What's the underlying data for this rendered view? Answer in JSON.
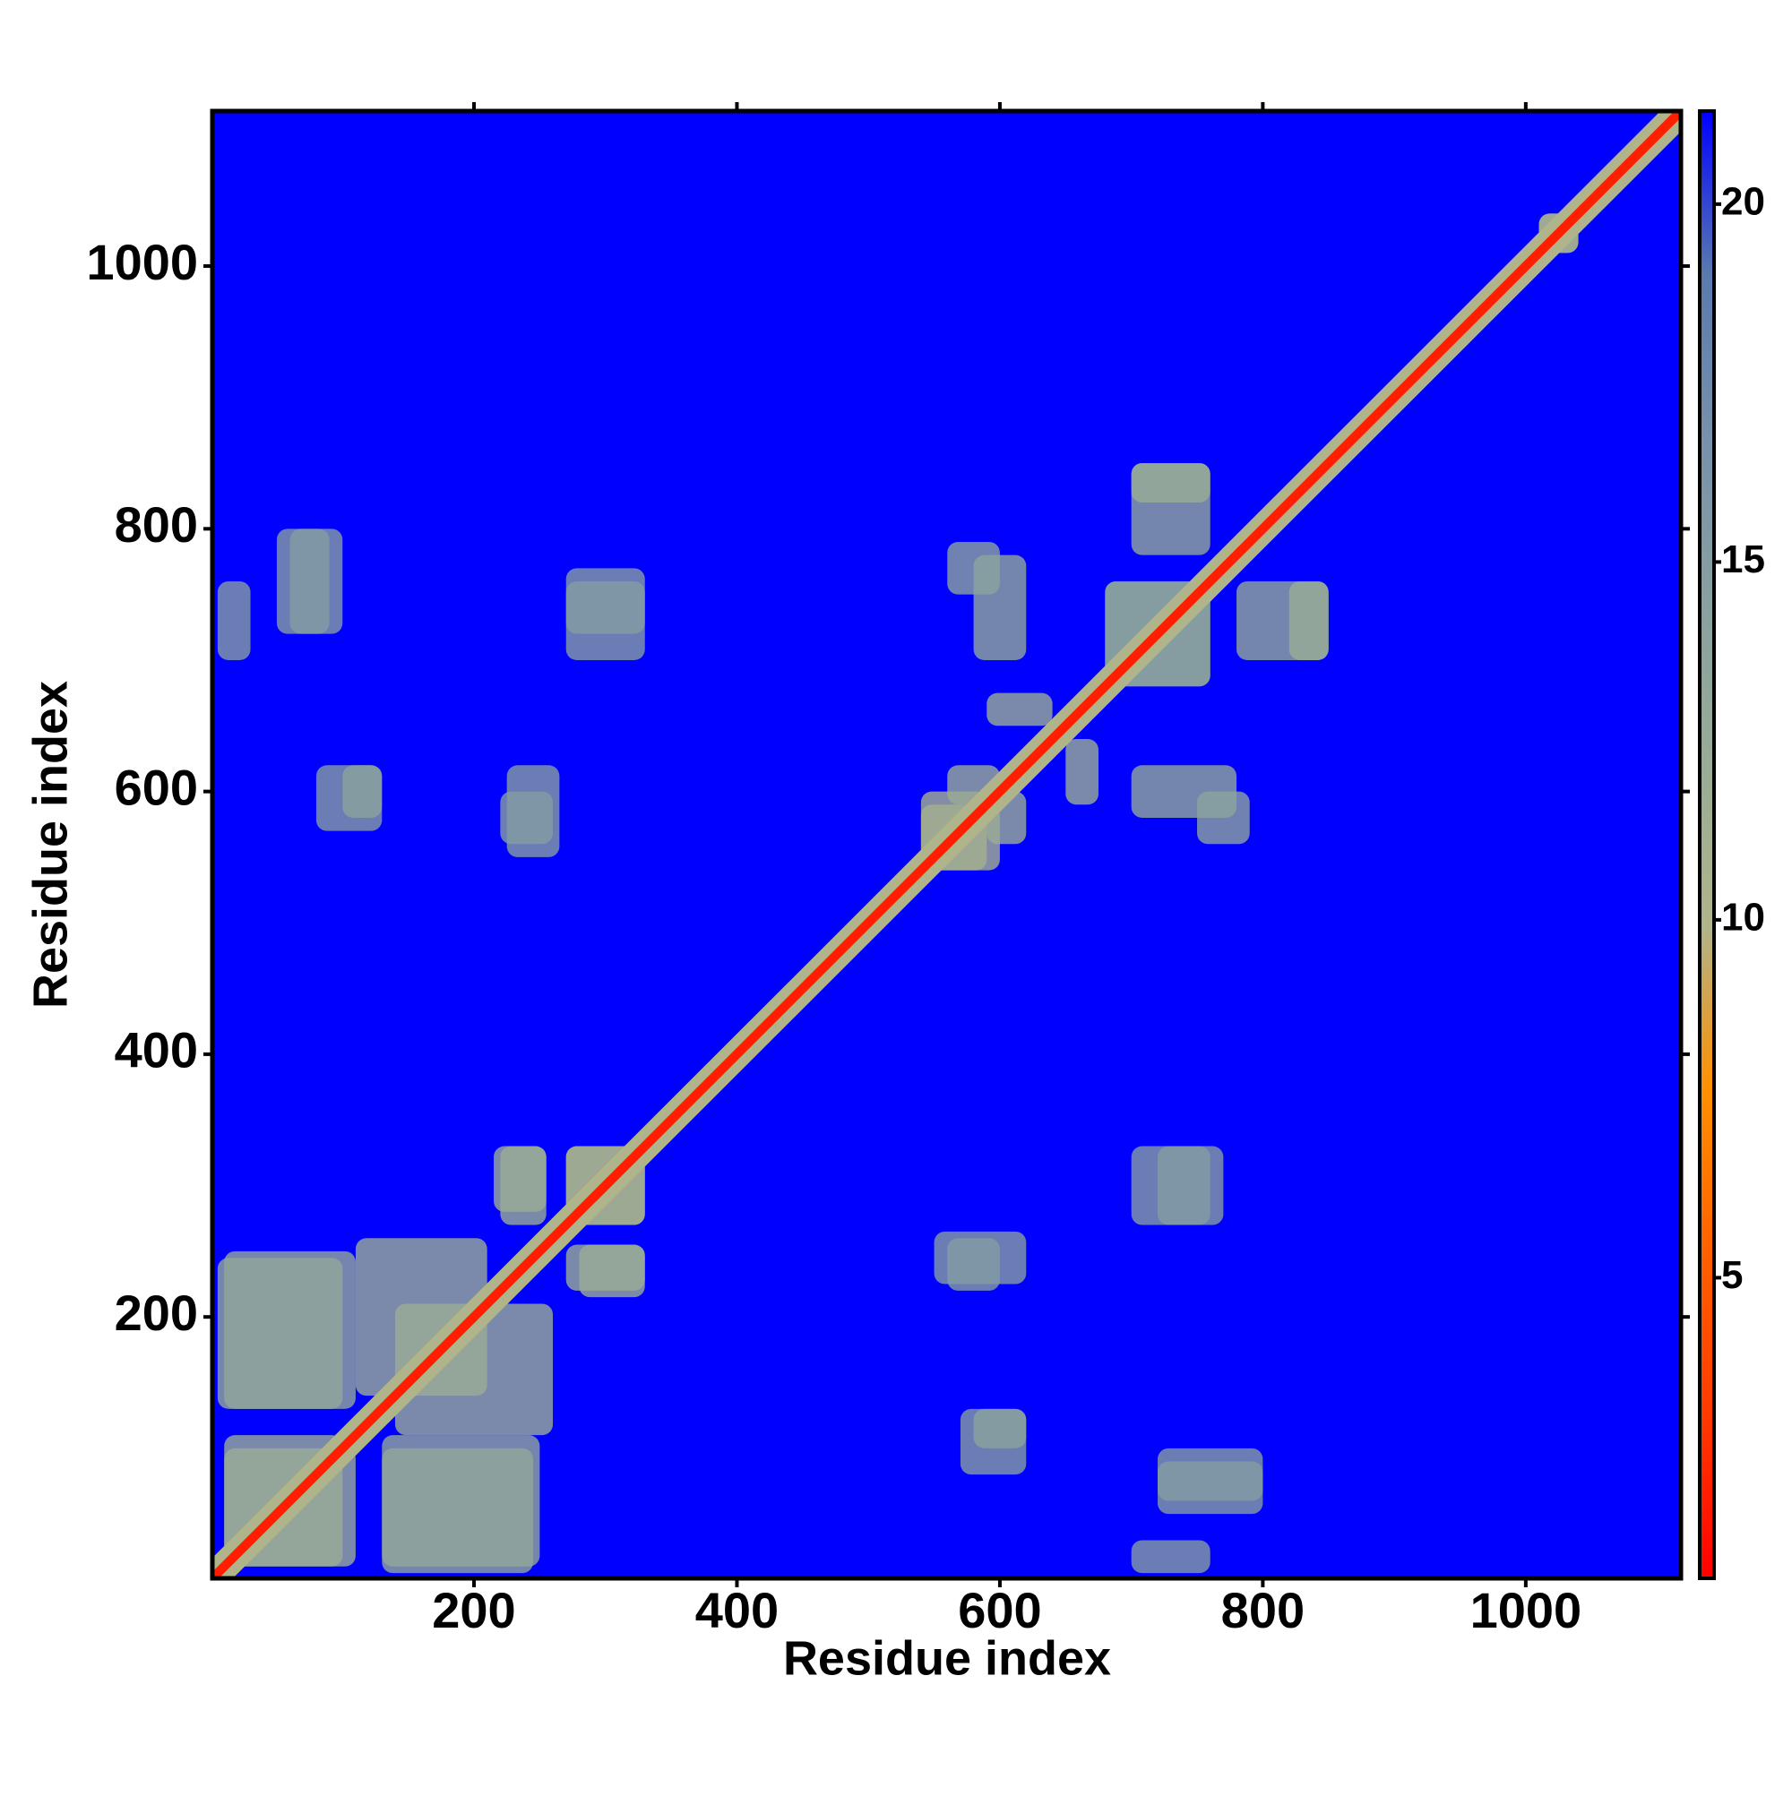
{
  "chart_data": {
    "type": "heatmap",
    "x_label": "Residue index",
    "y_label": "Residue index",
    "xlim": [
      1,
      1118
    ],
    "ylim": [
      1,
      1118
    ],
    "xticks": [
      200,
      400,
      600,
      800,
      1000
    ],
    "yticks": [
      200,
      400,
      600,
      800,
      1000
    ],
    "clim": [
      0.8,
      21.3
    ],
    "cticks": [
      5,
      10,
      15,
      20
    ],
    "colormap": [
      "#ff0000",
      "#ff3a00",
      "#ff6000",
      "#ff9000",
      "#b0b48a",
      "#98ac96",
      "#88a0a0",
      "#7890aa",
      "#5a7aae",
      "#0000ff"
    ],
    "background_value": 21.3,
    "symmetric": true,
    "diagonal": [
      {
        "value": 10,
        "width": 22
      },
      {
        "value": 2,
        "width": 7
      }
    ],
    "regions": [
      {
        "x": [
          5,
          100
        ],
        "y": [
          130,
          245
        ],
        "value": 13
      },
      {
        "x": [
          10,
          100
        ],
        "y": [
          10,
          110
        ],
        "value": 12
      },
      {
        "x": [
          130,
          250
        ],
        "y": [
          10,
          110
        ],
        "value": 13
      },
      {
        "x": [
          110,
          210
        ],
        "y": [
          140,
          260
        ],
        "value": 12
      },
      {
        "x": [
          220,
          255
        ],
        "y": [
          270,
          330
        ],
        "value": 12
      },
      {
        "x": [
          280,
          330
        ],
        "y": [
          215,
          255
        ],
        "value": 12
      },
      {
        "x": [
          270,
          330
        ],
        "y": [
          270,
          330
        ],
        "value": 11
      },
      {
        "x": [
          540,
          590
        ],
        "y": [
          540,
          600
        ],
        "value": 11
      },
      {
        "x": [
          560,
          600
        ],
        "y": [
          590,
          620
        ],
        "value": 12
      },
      {
        "x": [
          590,
          640
        ],
        "y": [
          650,
          675
        ],
        "value": 12
      },
      {
        "x": [
          700,
          780
        ],
        "y": [
          580,
          620
        ],
        "value": 13
      },
      {
        "x": [
          700,
          760
        ],
        "y": [
          780,
          850
        ],
        "value": 13
      },
      {
        "x": [
          820,
          850
        ],
        "y": [
          700,
          760
        ],
        "value": 12
      },
      {
        "x": [
          560,
          600
        ],
        "y": [
          750,
          790
        ],
        "value": 14
      },
      {
        "x": [
          680,
          760
        ],
        "y": [
          680,
          760
        ],
        "value": 14
      },
      {
        "x": [
          270,
          330
        ],
        "y": [
          700,
          760
        ],
        "value": 15
      },
      {
        "x": [
          5,
          30
        ],
        "y": [
          700,
          760
        ],
        "value": 15
      },
      {
        "x": [
          225,
          265
        ],
        "y": [
          550,
          620
        ],
        "value": 15
      },
      {
        "x": [
          80,
          130
        ],
        "y": [
          570,
          620
        ],
        "value": 15
      },
      {
        "x": [
          50,
          100
        ],
        "y": [
          720,
          800
        ],
        "value": 15
      },
      {
        "x": [
          720,
          770
        ],
        "y": [
          270,
          330
        ],
        "value": 15
      },
      {
        "x": [
          560,
          600
        ],
        "y": [
          220,
          260
        ],
        "value": 15
      },
      {
        "x": [
          580,
          620
        ],
        "y": [
          100,
          130
        ],
        "value": 14
      },
      {
        "x": [
          720,
          800
        ],
        "y": [
          60,
          90
        ],
        "value": 15
      },
      {
        "x": [
          1010,
          1040
        ],
        "y": [
          1010,
          1040
        ],
        "value": 11
      }
    ]
  }
}
